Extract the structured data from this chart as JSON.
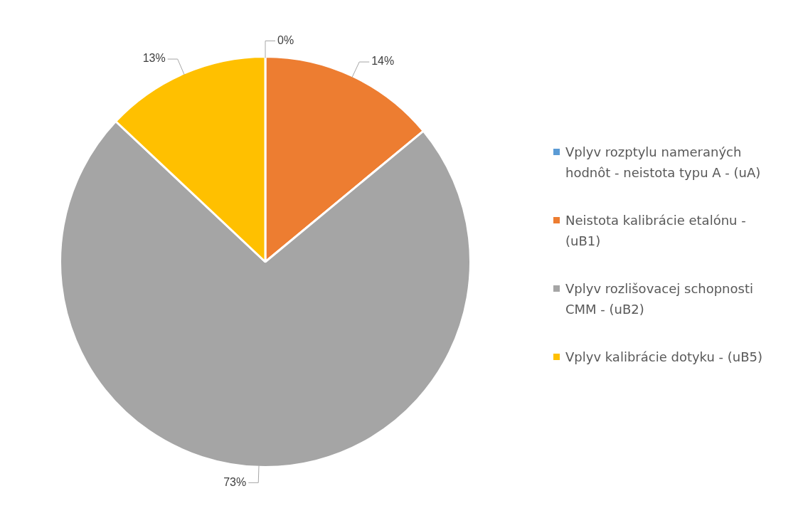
{
  "chart_data": {
    "type": "pie",
    "categories": [
      "Vplyv rozptylu nameraných hodnôt - neistota typu A - (uA)",
      "Neistota kalibrácie etalónu - (uB1)",
      "Vplyv rozlišovacej schopnosti CMM - (uB2)",
      "Vplyv kalibrácie dotyku - (uB5)"
    ],
    "values": [
      0,
      14,
      73,
      13
    ],
    "colors": [
      "#5b9bd5",
      "#ed7d31",
      "#a5a5a5",
      "#ffc000"
    ],
    "value_labels": [
      "0%",
      "14%",
      "73%",
      "13%"
    ],
    "legend": "right"
  }
}
